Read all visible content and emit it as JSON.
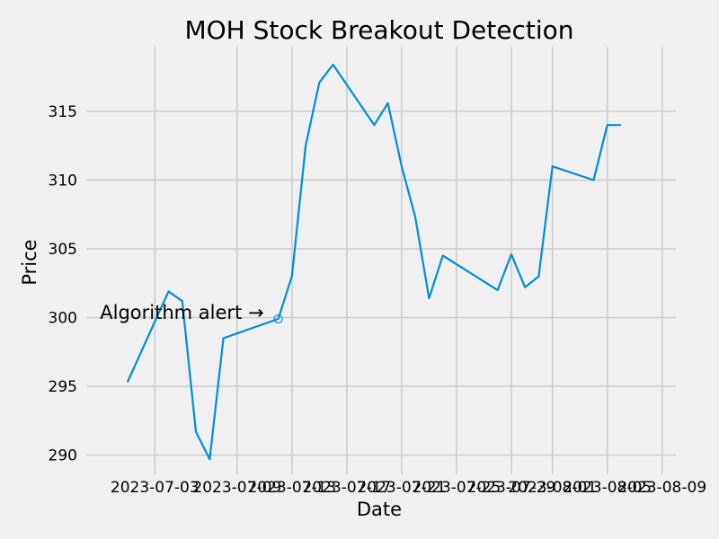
{
  "chart_data": {
    "type": "line",
    "title": "MOH Stock Breakout Detection",
    "xlabel": "Date",
    "ylabel": "Price",
    "x_is_date": true,
    "xlim": [
      "2023-06-28",
      "2023-08-10"
    ],
    "ylim": [
      288.6,
      319.7
    ],
    "x_ticks": [
      "2023-07-03",
      "2023-07-09",
      "2023-07-13",
      "2023-07-17",
      "2023-07-21",
      "2023-07-25",
      "2023-07-29",
      "2023-08-01",
      "2023-08-05",
      "2023-08-09"
    ],
    "x_tick_labels": [
      "2023-07-03",
      "2023-07-09",
      "2023-07-13",
      "2023-07-17",
      "2023-07-21",
      "2023-07-25",
      "2023-07-29",
      "2023-08-01",
      "2023-08-05",
      "2023-08-09"
    ],
    "y_ticks": [
      290,
      295,
      300,
      305,
      310,
      315
    ],
    "grid": true,
    "line_color": "#008fd5",
    "series": [
      {
        "x": [
          "2023-07-01",
          "2023-07-04",
          "2023-07-05",
          "2023-07-06",
          "2023-07-07",
          "2023-07-08",
          "2023-07-12",
          "2023-07-13",
          "2023-07-14",
          "2023-07-15",
          "2023-07-16",
          "2023-07-19",
          "2023-07-20",
          "2023-07-21",
          "2023-07-22",
          "2023-07-23",
          "2023-07-24",
          "2023-07-28",
          "2023-07-29",
          "2023-07-30",
          "2023-07-31",
          "2023-08-01",
          "2023-08-04",
          "2023-08-05",
          "2023-08-06"
        ],
        "y": [
          295.3,
          301.9,
          301.2,
          291.7,
          289.7,
          298.5,
          299.9,
          303.0,
          312.5,
          317.1,
          318.4,
          314.0,
          315.6,
          311.0,
          307.3,
          301.4,
          304.5,
          302.0,
          304.6,
          302.2,
          303.0,
          311.0,
          310.0,
          314.0,
          314.0
        ]
      }
    ],
    "annotations": [
      {
        "text": "Algorithm alert →",
        "x": "2023-07-12",
        "y": 299.9
      }
    ]
  }
}
